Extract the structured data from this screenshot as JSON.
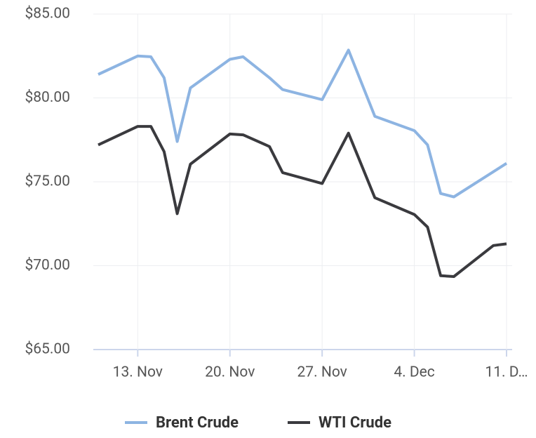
{
  "chart_data": {
    "type": "line",
    "x": [
      "10. Nov",
      "13. Nov",
      "14. Nov",
      "15. Nov",
      "16. Nov",
      "17. Nov",
      "20. Nov",
      "21. Nov",
      "23. Nov",
      "24. Nov",
      "27. Nov",
      "29. Nov",
      "1. Dec",
      "4. Dec",
      "5. Dec",
      "6. Dec",
      "7. Dec",
      "10. Dec",
      "11. Dec"
    ],
    "series": [
      {
        "name": "Brent Crude",
        "color": "#8db4e2",
        "values": [
          81.4,
          82.5,
          82.45,
          81.2,
          77.4,
          80.6,
          82.3,
          82.45,
          81.2,
          80.5,
          79.9,
          82.85,
          78.9,
          78.05,
          77.2,
          74.3,
          74.1,
          75.6,
          76.1
        ]
      },
      {
        "name": "WTI Crude",
        "color": "#3a3a3e",
        "values": [
          77.2,
          78.3,
          78.3,
          76.8,
          73.1,
          76.05,
          77.85,
          77.8,
          77.1,
          75.55,
          74.9,
          77.9,
          74.05,
          73.05,
          72.3,
          69.4,
          69.35,
          71.2,
          71.3
        ]
      }
    ],
    "xlim": [
      "10. Nov",
      "11. Dec"
    ],
    "xticks": [
      "13. Nov",
      "20. Nov",
      "27. Nov",
      "4. Dec",
      {
        "value": "11. Dec",
        "label": "11. D…"
      }
    ],
    "ylim": [
      65,
      85
    ],
    "yticks": [
      {
        "value": 65,
        "label": "$65.00"
      },
      {
        "value": 70,
        "label": "$70.00"
      },
      {
        "value": 75,
        "label": "$75.00"
      },
      {
        "value": 80,
        "label": "$80.00"
      },
      {
        "value": 85,
        "label": "$85.00"
      }
    ],
    "grid": true,
    "legend": "bottom"
  }
}
